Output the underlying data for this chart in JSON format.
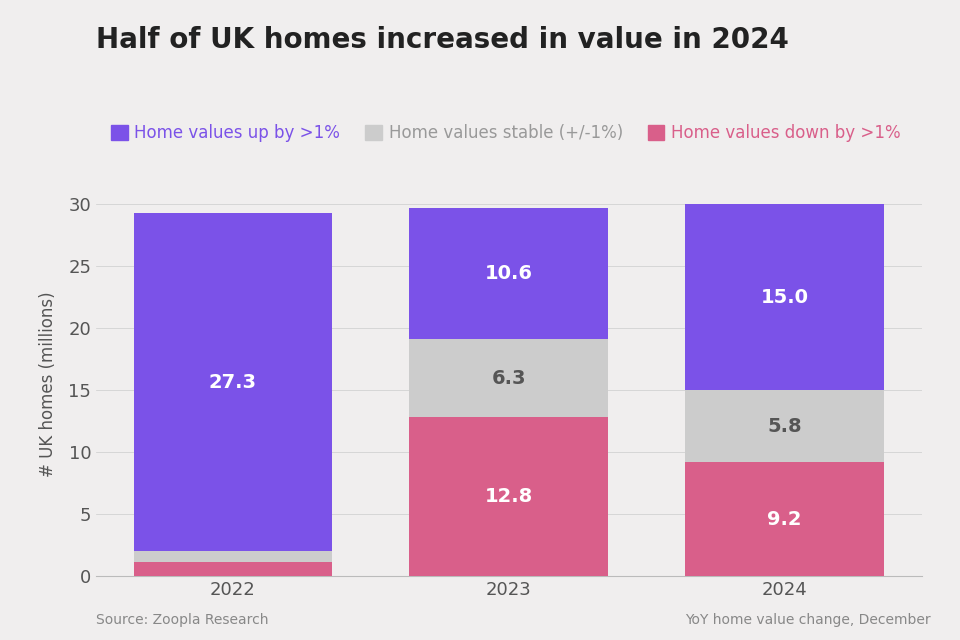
{
  "title": "Half of UK homes increased in value in 2024",
  "years": [
    "2022",
    "2023",
    "2024"
  ],
  "down": [
    1.1,
    12.8,
    9.2
  ],
  "stable": [
    0.9,
    6.3,
    5.8
  ],
  "up": [
    27.3,
    10.6,
    15.0
  ],
  "down_color": "#d95f8a",
  "stable_color": "#cccccc",
  "up_color": "#7b52e8",
  "bg_color": "#f0eeee",
  "ylabel": "# UK homes (millions)",
  "ylim": [
    0,
    31
  ],
  "yticks": [
    0,
    5,
    10,
    15,
    20,
    25,
    30
  ],
  "legend_labels": [
    "Home values up by >1%",
    "Home values stable (+/-1%)",
    "Home values down by >1%"
  ],
  "source_left": "Source: Zoopla Research",
  "source_right": "YoY home value change, December",
  "bar_width": 0.72,
  "title_fontsize": 20,
  "label_fontsize": 12,
  "tick_fontsize": 13,
  "annotation_fontsize": 14,
  "legend_fontsize": 12
}
